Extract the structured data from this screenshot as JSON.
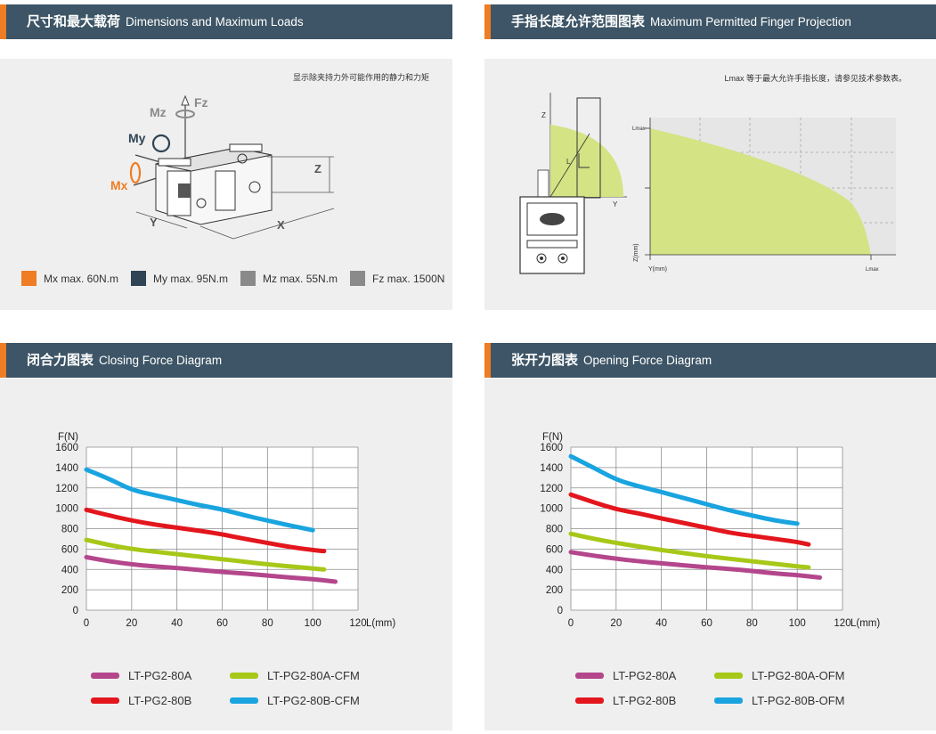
{
  "panels": {
    "dimensions": {
      "title_cn": "尺寸和最大载荷",
      "title_en": "Dimensions and Maximum Loads",
      "note": "显示除夹持力外可能作用的静力和力矩",
      "labels": {
        "mz": "Mz",
        "fz": "Fz",
        "my": "My",
        "mx": "Mx",
        "z": "Z",
        "y": "Y",
        "x": "X"
      },
      "legend": [
        {
          "label": "Mx max. 60N.m",
          "color": "#ee7d24"
        },
        {
          "label": "My max. 95N.m",
          "color": "#2f4454"
        },
        {
          "label": "Mz max. 55N.m",
          "color": "#8a8a8a"
        },
        {
          "label": "Fz max. 1500N",
          "color": "#8a8a8a"
        }
      ]
    },
    "finger": {
      "title_cn": "手指长度允许范围图表",
      "title_en": "Maximum Permitted Finger Projection",
      "note": "Lmax 等于最大允许手指长度，请参见技术参数表。",
      "labels": {
        "z": "Z",
        "y": "Y",
        "l": "L",
        "lmax_top": "Lmax",
        "lmax_bottom": "Lmax",
        "z_axis": "Z(mm)",
        "y_axis": "Y(mm)"
      }
    },
    "closing": {
      "title_cn": "闭合力图表",
      "title_en": "Closing Force Diagram"
    },
    "opening": {
      "title_cn": "张开力图表",
      "title_en": "Opening Force Diagram"
    }
  },
  "chart_data": [
    {
      "type": "line",
      "title": "Closing Force Diagram",
      "xlabel": "L(mm)",
      "ylabel": "F(N)",
      "xlim": [
        0,
        120
      ],
      "ylim": [
        0,
        1600
      ],
      "xticks": [
        0,
        20,
        40,
        60,
        80,
        100,
        120
      ],
      "yticks": [
        0,
        200,
        400,
        600,
        800,
        1000,
        1200,
        1400,
        1600
      ],
      "grid": true,
      "legend_position": "bottom",
      "series": [
        {
          "name": "LT-PG2-80A",
          "color": "#b4468c",
          "x": [
            0,
            10,
            20,
            30,
            40,
            50,
            60,
            70,
            80,
            90,
            100,
            110
          ],
          "y": [
            520,
            480,
            450,
            430,
            415,
            395,
            375,
            360,
            340,
            320,
            305,
            280
          ]
        },
        {
          "name": "LT-PG2-80B",
          "color": "#e3161d",
          "x": [
            0,
            10,
            20,
            30,
            40,
            50,
            60,
            70,
            80,
            90,
            100,
            105
          ],
          "y": [
            985,
            930,
            880,
            840,
            810,
            780,
            745,
            700,
            660,
            620,
            590,
            580
          ]
        },
        {
          "name": "LT-PG2-80A-CFM",
          "color": "#a7c818",
          "x": [
            0,
            10,
            20,
            30,
            40,
            50,
            60,
            70,
            80,
            90,
            100,
            105
          ],
          "y": [
            690,
            640,
            600,
            575,
            550,
            525,
            500,
            475,
            450,
            430,
            410,
            400
          ]
        },
        {
          "name": "LT-PG2-80B-CFM",
          "color": "#19a4e0",
          "x": [
            0,
            10,
            20,
            30,
            40,
            50,
            60,
            70,
            80,
            90,
            100
          ],
          "y": [
            1380,
            1290,
            1180,
            1130,
            1080,
            1030,
            990,
            930,
            880,
            830,
            785
          ]
        }
      ]
    },
    {
      "type": "line",
      "title": "Opening Force Diagram",
      "xlabel": "L(mm)",
      "ylabel": "F(N)",
      "xlim": [
        0,
        120
      ],
      "ylim": [
        0,
        1600
      ],
      "xticks": [
        0,
        20,
        40,
        60,
        80,
        100,
        120
      ],
      "yticks": [
        0,
        200,
        400,
        600,
        800,
        1000,
        1200,
        1400,
        1600
      ],
      "grid": true,
      "legend_position": "bottom",
      "series": [
        {
          "name": "LT-PG2-80A",
          "color": "#b4468c",
          "x": [
            0,
            10,
            20,
            30,
            40,
            50,
            60,
            70,
            80,
            90,
            100,
            110
          ],
          "y": [
            570,
            535,
            505,
            480,
            460,
            440,
            420,
            405,
            385,
            360,
            345,
            320
          ]
        },
        {
          "name": "LT-PG2-80B",
          "color": "#e3161d",
          "x": [
            0,
            10,
            20,
            30,
            40,
            50,
            60,
            70,
            80,
            90,
            100,
            105
          ],
          "y": [
            1135,
            1060,
            990,
            950,
            900,
            855,
            810,
            760,
            730,
            700,
            670,
            645
          ]
        },
        {
          "name": "LT-PG2-80A-OFM",
          "color": "#a7c818",
          "x": [
            0,
            10,
            20,
            30,
            40,
            50,
            60,
            70,
            80,
            90,
            100,
            105
          ],
          "y": [
            750,
            700,
            660,
            625,
            590,
            560,
            530,
            505,
            480,
            455,
            430,
            420
          ]
        },
        {
          "name": "LT-PG2-80B-OFM",
          "color": "#19a4e0",
          "x": [
            0,
            10,
            20,
            30,
            40,
            50,
            60,
            70,
            80,
            90,
            100
          ],
          "y": [
            1510,
            1400,
            1280,
            1215,
            1160,
            1100,
            1040,
            980,
            930,
            880,
            850
          ]
        }
      ]
    }
  ]
}
